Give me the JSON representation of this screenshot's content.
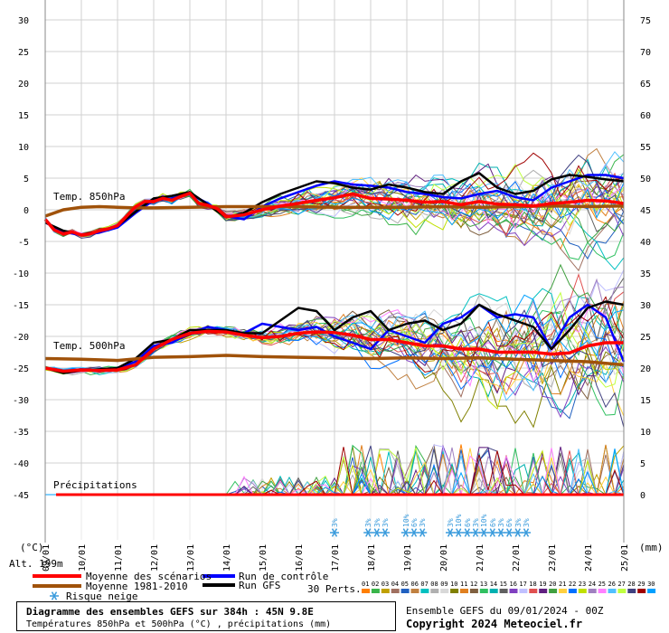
{
  "chart_data": {
    "type": "line",
    "title": "Diagramme des ensembles GEFS sur 384h : 45N 9.8E",
    "subtitle": "Températures 850hPa et 500hPa (°C) , précipitations (mm)",
    "left_axis_unit": "(°C)",
    "right_axis_unit": "(mm)",
    "left_ticks": [
      30,
      25,
      20,
      15,
      10,
      5,
      0,
      -5,
      -10,
      -15,
      -20,
      -25,
      -30,
      -35,
      -40,
      -45
    ],
    "right_ticks": [
      75,
      70,
      65,
      60,
      55,
      50,
      45,
      40,
      35,
      30,
      25,
      20,
      15,
      10,
      5,
      0
    ],
    "x_ticks": [
      "09/01",
      "10/01",
      "11/01",
      "12/01",
      "13/01",
      "14/01",
      "15/01",
      "16/01",
      "17/01",
      "18/01",
      "19/01",
      "20/01",
      "21/01",
      "22/01",
      "23/01",
      "24/01",
      "25/01"
    ],
    "ylim": [
      -45,
      30
    ],
    "altitude_label": "Alt. 199m",
    "band_labels": [
      "Temp. 850hPa",
      "Temp. 500hPa",
      "Précipitations"
    ],
    "snow_risk_labels": [
      {
        "day": 8.0,
        "pct": "3%"
      },
      {
        "day": 8.93,
        "pct": "3%"
      },
      {
        "day": 9.17,
        "pct": "3%"
      },
      {
        "day": 9.4,
        "pct": "3%"
      },
      {
        "day": 9.97,
        "pct": "10%"
      },
      {
        "day": 10.2,
        "pct": "6%"
      },
      {
        "day": 10.43,
        "pct": "3%"
      },
      {
        "day": 11.2,
        "pct": "3%"
      },
      {
        "day": 11.43,
        "pct": "10%"
      },
      {
        "day": 11.67,
        "pct": "6%"
      },
      {
        "day": 11.9,
        "pct": "3%"
      },
      {
        "day": 12.13,
        "pct": "10%"
      },
      {
        "day": 12.37,
        "pct": "6%"
      },
      {
        "day": 12.6,
        "pct": "3%"
      },
      {
        "day": 12.83,
        "pct": "6%"
      },
      {
        "day": 13.07,
        "pct": "3%"
      },
      {
        "day": 13.3,
        "pct": "3%"
      }
    ],
    "series": [
      {
        "name": "Moyenne des scénarios",
        "color": "#ff0000",
        "width": 3.5,
        "kind": "t850",
        "x": [
          0,
          0.25,
          0.5,
          0.75,
          1,
          1.25,
          1.5,
          1.75,
          2,
          2.25,
          2.5,
          2.75,
          3,
          3.25,
          3.5,
          3.75,
          4,
          4.25,
          4.5,
          4.75,
          5,
          5.5,
          6,
          6.5,
          7,
          7.5,
          8,
          8.5,
          9,
          9.5,
          10,
          10.5,
          11,
          11.5,
          12,
          12.5,
          13,
          13.5,
          14,
          14.5,
          15,
          15.5,
          16
        ],
        "values": [
          -1.5,
          -3.2,
          -3.8,
          -3.5,
          -4,
          -3.8,
          -3.3,
          -3,
          -2.5,
          -1,
          0.5,
          1.3,
          1.3,
          1.8,
          1.5,
          2.1,
          2.6,
          1,
          0.7,
          0.2,
          -1.1,
          -0.8,
          0,
          0.6,
          1,
          1.5,
          1.9,
          2.5,
          1.8,
          1.7,
          1.5,
          1.2,
          1.3,
          0.8,
          1.3,
          0.9,
          0.8,
          0.6,
          1,
          1.2,
          1.5,
          1.4,
          1
        ]
      },
      {
        "name": "Moyenne 1981-2010",
        "color": "#a0520a",
        "width": 3.5,
        "kind": "t850",
        "x": [
          0,
          0.5,
          1,
          1.5,
          2,
          2.5,
          3,
          4,
          5,
          6,
          7,
          8,
          9,
          10,
          11,
          12,
          13,
          14,
          15,
          16
        ],
        "values": [
          -1,
          0,
          0.4,
          0.5,
          0.4,
          0.3,
          0.3,
          0.4,
          0.5,
          0.5,
          0.5,
          0.4,
          0.4,
          0.4,
          0.5,
          0.4,
          0.5,
          0.6,
          0.5,
          0.6
        ]
      },
      {
        "name": "Moyenne des scénarios",
        "color": "#ff0000",
        "width": 3.5,
        "kind": "t500",
        "x": [
          0,
          0.5,
          1,
          1.5,
          2,
          2.5,
          3,
          3.5,
          4,
          4.5,
          5,
          5.5,
          6,
          6.5,
          7,
          7.5,
          8,
          8.5,
          9,
          9.5,
          10,
          10.5,
          11,
          11.5,
          12,
          12.5,
          13,
          13.5,
          14,
          14.5,
          15,
          15.5,
          16
        ],
        "values": [
          -25,
          -25.5,
          -25.3,
          -25.4,
          -25.3,
          -24.5,
          -22,
          -20.5,
          -19.5,
          -19.2,
          -19.3,
          -19.8,
          -20.2,
          -20,
          -19.5,
          -19.3,
          -19.4,
          -19.8,
          -20.5,
          -20.5,
          -21,
          -21.5,
          -21.5,
          -22,
          -22,
          -22.5,
          -22.5,
          -22.5,
          -22.8,
          -22.6,
          -21.5,
          -21,
          -21
        ]
      },
      {
        "name": "Moyenne 1981-2010",
        "color": "#a0520a",
        "width": 3.5,
        "kind": "t500",
        "x": [
          0,
          1,
          2,
          3,
          4,
          5,
          6,
          7,
          8,
          9,
          10,
          11,
          12,
          13,
          14,
          15,
          16
        ],
        "values": [
          -23.5,
          -23.6,
          -23.8,
          -23.3,
          -23.2,
          -23,
          -23.2,
          -23.3,
          -23.4,
          -23.5,
          -23.4,
          -23.5,
          -23.4,
          -23.6,
          -23.8,
          -24,
          -24.5
        ]
      },
      {
        "name": "Run de contrôle",
        "color": "#0000ff",
        "width": 2.5,
        "kind": "t850",
        "x": [
          0,
          0.5,
          1,
          1.5,
          2,
          2.5,
          3,
          3.5,
          4,
          4.5,
          5,
          5.5,
          6,
          6.5,
          7,
          7.5,
          8,
          8.5,
          9,
          9.5,
          10,
          10.5,
          11,
          11.5,
          12,
          12.5,
          13,
          13.5,
          14,
          14.5,
          15,
          15.5,
          16
        ],
        "values": [
          -2,
          -3.5,
          -4,
          -3.6,
          -2.8,
          -0.5,
          1.5,
          1.8,
          2.5,
          1,
          -1,
          -1.5,
          0.5,
          1.8,
          2.8,
          3.8,
          4.5,
          4,
          3.8,
          3.5,
          2.8,
          2.5,
          2,
          1.8,
          2.5,
          3,
          2,
          1.5,
          3.5,
          4.5,
          5.5,
          5.5,
          5
        ]
      },
      {
        "name": "Run GFS",
        "color": "#000000",
        "width": 2.5,
        "kind": "t850",
        "x": [
          0,
          0.5,
          1,
          1.5,
          2,
          2.5,
          3,
          3.5,
          4,
          4.5,
          5,
          5.5,
          6,
          6.5,
          7,
          7.5,
          8,
          8.5,
          9,
          9.5,
          10,
          10.5,
          11,
          11.5,
          12,
          12.5,
          13,
          13.5,
          14,
          14.5,
          15,
          15.5,
          16
        ],
        "values": [
          -2,
          -3.3,
          -3.9,
          -3.4,
          -2.5,
          -0.3,
          1.8,
          2.2,
          2.8,
          0.8,
          -1.2,
          -0.5,
          1.2,
          2.5,
          3.5,
          4.5,
          4.2,
          3.5,
          3.2,
          4,
          3.5,
          2.8,
          2.5,
          4.5,
          5.8,
          3.5,
          2.5,
          3,
          4.8,
          5.5,
          5.2,
          4.8,
          4.5
        ]
      },
      {
        "name": "Run de contrôle",
        "color": "#0000ff",
        "width": 2.5,
        "kind": "t500",
        "x": [
          0,
          0.5,
          1,
          1.5,
          2,
          2.5,
          3,
          3.5,
          4,
          4.5,
          5,
          5.5,
          6,
          6.5,
          7,
          7.5,
          8,
          8.5,
          9,
          9.5,
          10,
          10.5,
          11,
          11.5,
          12,
          12.5,
          13,
          13.5,
          14,
          14.5,
          15,
          15.5,
          16
        ],
        "values": [
          -25,
          -25.5,
          -25.2,
          -25.5,
          -25,
          -24,
          -21.5,
          -21,
          -19.5,
          -18.5,
          -19,
          -19.5,
          -18,
          -18.5,
          -19,
          -18.5,
          -20,
          -21,
          -22,
          -19,
          -20,
          -21,
          -18,
          -17,
          -15,
          -17,
          -16.5,
          -17,
          -22,
          -17,
          -15,
          -17,
          -24
        ]
      },
      {
        "name": "Run GFS",
        "color": "#000000",
        "width": 2.5,
        "kind": "t500",
        "x": [
          0,
          0.5,
          1,
          1.5,
          2,
          2.5,
          3,
          3.5,
          4,
          4.5,
          5,
          5.5,
          6,
          6.5,
          7,
          7.5,
          8,
          8.5,
          9,
          9.5,
          10,
          10.5,
          11,
          11.5,
          12,
          12.5,
          13,
          13.5,
          14,
          14.5,
          15,
          15.5,
          16
        ],
        "values": [
          -25,
          -25.8,
          -25.4,
          -25.2,
          -25,
          -23.5,
          -21,
          -20.5,
          -19,
          -19,
          -19,
          -19.5,
          -19.5,
          -17.5,
          -15.5,
          -16,
          -19,
          -17,
          -16,
          -19,
          -18,
          -17.5,
          -19,
          -18,
          -15,
          -16.5,
          -17.5,
          -18.5,
          -22,
          -19,
          -15.5,
          -14.5,
          -15
        ]
      }
    ],
    "legend": [
      {
        "label": "Moyenne des scénarios",
        "color": "#ff0000"
      },
      {
        "label": "Moyenne 1981-2010",
        "color": "#a0520a"
      },
      {
        "label": "Risque neige",
        "color": "#3a9bdc"
      },
      {
        "label": "Run de contrôle",
        "color": "#0000ff"
      },
      {
        "label": "Run GFS",
        "color": "#000000"
      }
    ],
    "perts_label": "30 Perts.",
    "perts_numbers": [
      "01",
      "02",
      "03",
      "04",
      "05",
      "06",
      "07",
      "08",
      "09",
      "10",
      "11",
      "12",
      "13",
      "14",
      "15",
      "16",
      "17",
      "18",
      "19",
      "20",
      "21",
      "22",
      "23",
      "24",
      "25",
      "26",
      "27",
      "28",
      "29",
      "30"
    ],
    "perts_colors": [
      "#ff7f00",
      "#39b54a",
      "#c0a000",
      "#a07060",
      "#2060c0",
      "#c08040",
      "#00c0c0",
      "#b0b0b0",
      "#d8d8d8",
      "#808000",
      "#e08020",
      "#806040",
      "#30c060",
      "#00b0b0",
      "#606060",
      "#8040c0",
      "#c0c0ff",
      "#e05050",
      "#602080",
      "#40a040",
      "#ffd040",
      "#0070ff",
      "#c0e000",
      "#a080c0",
      "#ff80ff",
      "#50c0ff",
      "#c0ff40",
      "#404080",
      "#a00000",
      "#00a0ff"
    ]
  },
  "footer": {
    "run_info": "Ensemble GEFS du 09/01/2024 - 00Z",
    "copyright": "Copyright 2024 Meteociel.fr"
  }
}
